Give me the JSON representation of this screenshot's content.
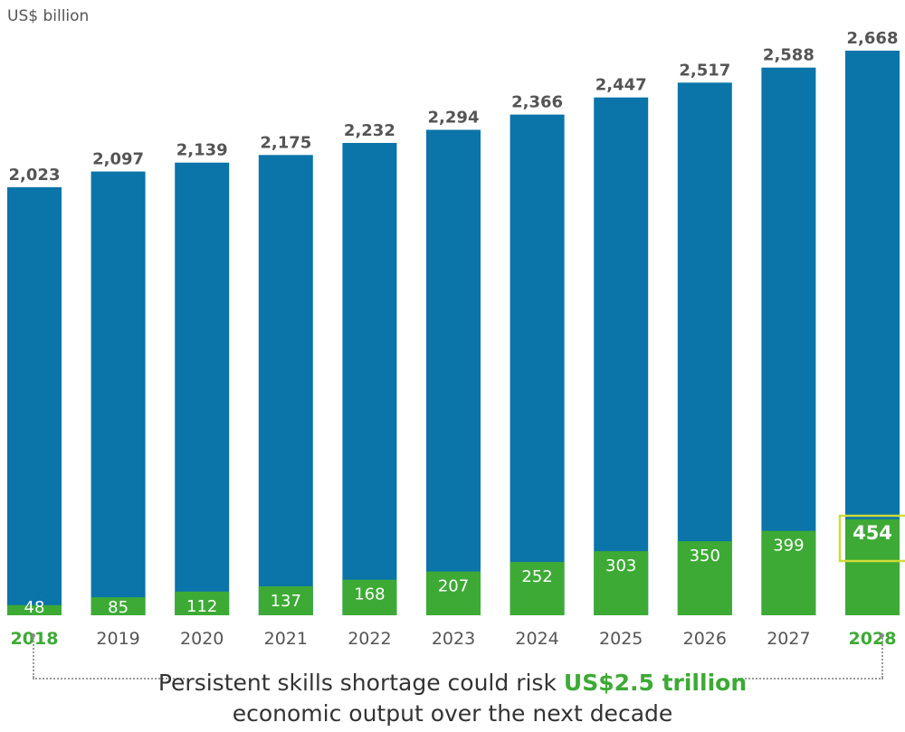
{
  "unit_label": "US$ billion",
  "caption": {
    "line1_prefix": "Persistent skills shortage could risk",
    "line1_highlight": "US$2.5 trillion",
    "line2": "economic output over the next decade"
  },
  "colors": {
    "total": "#0b74a9",
    "shortage": "#3daa35",
    "highlight_box": "#cddc39",
    "year_default": "#555555",
    "year_highlight": "#3daa35",
    "total_label": "#555555"
  },
  "chart_data": {
    "type": "bar",
    "categories": [
      "2018",
      "2019",
      "2020",
      "2021",
      "2022",
      "2023",
      "2024",
      "2025",
      "2026",
      "2027",
      "2028"
    ],
    "series": [
      {
        "values": [
          2023,
          2097,
          2139,
          2175,
          2232,
          2294,
          2366,
          2447,
          2517,
          2588,
          2668
        ]
      },
      {
        "values": [
          48,
          85,
          112,
          137,
          168,
          207,
          252,
          303,
          350,
          399,
          454
        ]
      }
    ],
    "highlighted_categories": [
      "2018",
      "2028"
    ],
    "ylabel": "US$ billion",
    "ylim": [
      0,
      2668
    ],
    "grid": false,
    "legend": "none"
  }
}
